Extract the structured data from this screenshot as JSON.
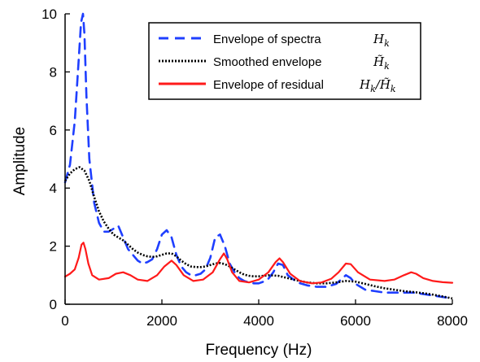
{
  "chart_data": {
    "type": "line",
    "xlabel": "Frequency (Hz)",
    "ylabel": "Amplitude",
    "xlim": [
      0,
      8000
    ],
    "ylim": [
      0,
      10
    ],
    "xticks": [
      "0",
      "2000",
      "4000",
      "6000",
      "8000"
    ],
    "yticks": [
      "0",
      "2",
      "4",
      "6",
      "8",
      "10"
    ],
    "grid": false,
    "legend_position": "top-right",
    "series": [
      {
        "name": "Envelope of spectra",
        "math": "H_k",
        "math_display": "H",
        "math_sub": "k",
        "color": "#1f3fff",
        "style": "dashed",
        "x": [
          0,
          100,
          200,
          280,
          330,
          370,
          400,
          440,
          500,
          600,
          700,
          800,
          900,
          1000,
          1100,
          1200,
          1300,
          1400,
          1500,
          1600,
          1700,
          1800,
          1900,
          2000,
          2100,
          2200,
          2300,
          2400,
          2500,
          2600,
          2700,
          2800,
          2900,
          3000,
          3100,
          3200,
          3300,
          3400,
          3500,
          3600,
          3700,
          3800,
          3900,
          4000,
          4100,
          4200,
          4300,
          4400,
          4500,
          4600,
          4800,
          5000,
          5200,
          5400,
          5600,
          5800,
          5900,
          6000,
          6200,
          6400,
          6600,
          6800,
          7000,
          7200,
          7400,
          7600,
          7800,
          8000
        ],
        "y": [
          4.2,
          4.8,
          6.3,
          8.4,
          9.7,
          10.0,
          9.3,
          7.2,
          5.0,
          3.5,
          2.8,
          2.5,
          2.5,
          2.6,
          2.7,
          2.3,
          1.9,
          1.7,
          1.5,
          1.4,
          1.45,
          1.55,
          1.9,
          2.4,
          2.55,
          2.3,
          1.7,
          1.3,
          1.1,
          1.0,
          1.0,
          1.05,
          1.2,
          1.6,
          2.3,
          2.4,
          2.0,
          1.4,
          1.1,
          0.9,
          0.8,
          0.75,
          0.72,
          0.72,
          0.78,
          0.88,
          1.1,
          1.4,
          1.35,
          1.0,
          0.75,
          0.65,
          0.6,
          0.6,
          0.7,
          1.0,
          0.9,
          0.7,
          0.5,
          0.45,
          0.4,
          0.4,
          0.4,
          0.4,
          0.35,
          0.3,
          0.25,
          0.2
        ]
      },
      {
        "name": "Smoothed envelope",
        "math": "H̃_k",
        "math_display": "H̃",
        "math_sub": "k",
        "color": "#000000",
        "style": "dotted",
        "x": [
          0,
          100,
          200,
          300,
          400,
          500,
          600,
          700,
          800,
          900,
          1000,
          1100,
          1200,
          1300,
          1400,
          1500,
          1600,
          1700,
          1800,
          1900,
          2000,
          2100,
          2200,
          2300,
          2400,
          2500,
          2600,
          2700,
          2800,
          2900,
          3000,
          3100,
          3200,
          3300,
          3400,
          3500,
          3600,
          3700,
          3800,
          3900,
          4000,
          4200,
          4400,
          4600,
          4800,
          5000,
          5200,
          5400,
          5600,
          5800,
          6000,
          6200,
          6400,
          6600,
          6800,
          7000,
          7200,
          7400,
          7600,
          7800,
          8000
        ],
        "y": [
          4.25,
          4.5,
          4.65,
          4.72,
          4.6,
          4.25,
          3.7,
          3.2,
          2.85,
          2.6,
          2.4,
          2.3,
          2.2,
          2.05,
          1.9,
          1.78,
          1.7,
          1.65,
          1.63,
          1.65,
          1.7,
          1.75,
          1.75,
          1.65,
          1.5,
          1.38,
          1.3,
          1.28,
          1.28,
          1.3,
          1.35,
          1.4,
          1.42,
          1.38,
          1.3,
          1.2,
          1.1,
          1.02,
          0.98,
          0.96,
          0.96,
          1.0,
          0.98,
          0.9,
          0.82,
          0.75,
          0.72,
          0.72,
          0.75,
          0.8,
          0.78,
          0.7,
          0.62,
          0.55,
          0.5,
          0.45,
          0.42,
          0.38,
          0.33,
          0.27,
          0.2
        ]
      },
      {
        "name": "Envelope of residual",
        "math": "H_k/H̃_k",
        "math_display": "H",
        "math_sub": "k",
        "math_display2": "/H̃",
        "math_sub2": "k",
        "color": "#ff1a1a",
        "style": "solid",
        "x": [
          0,
          100,
          200,
          280,
          340,
          380,
          420,
          480,
          560,
          700,
          900,
          1050,
          1200,
          1350,
          1500,
          1700,
          1900,
          2050,
          2200,
          2300,
          2450,
          2650,
          2850,
          3050,
          3200,
          3280,
          3350,
          3450,
          3600,
          3800,
          4000,
          4200,
          4350,
          4430,
          4500,
          4650,
          4850,
          5100,
          5300,
          5500,
          5650,
          5800,
          5900,
          6050,
          6300,
          6600,
          6800,
          7000,
          7150,
          7250,
          7400,
          7600,
          7800,
          8000
        ],
        "y": [
          0.95,
          1.05,
          1.2,
          1.6,
          2.05,
          2.12,
          1.9,
          1.4,
          1.0,
          0.85,
          0.9,
          1.05,
          1.1,
          1.0,
          0.85,
          0.8,
          1.0,
          1.3,
          1.5,
          1.35,
          1.0,
          0.8,
          0.85,
          1.1,
          1.55,
          1.75,
          1.55,
          1.1,
          0.8,
          0.75,
          0.85,
          1.1,
          1.45,
          1.58,
          1.45,
          1.05,
          0.8,
          0.72,
          0.75,
          0.88,
          1.1,
          1.4,
          1.38,
          1.1,
          0.85,
          0.8,
          0.85,
          1.0,
          1.1,
          1.05,
          0.9,
          0.8,
          0.76,
          0.74
        ]
      }
    ]
  }
}
